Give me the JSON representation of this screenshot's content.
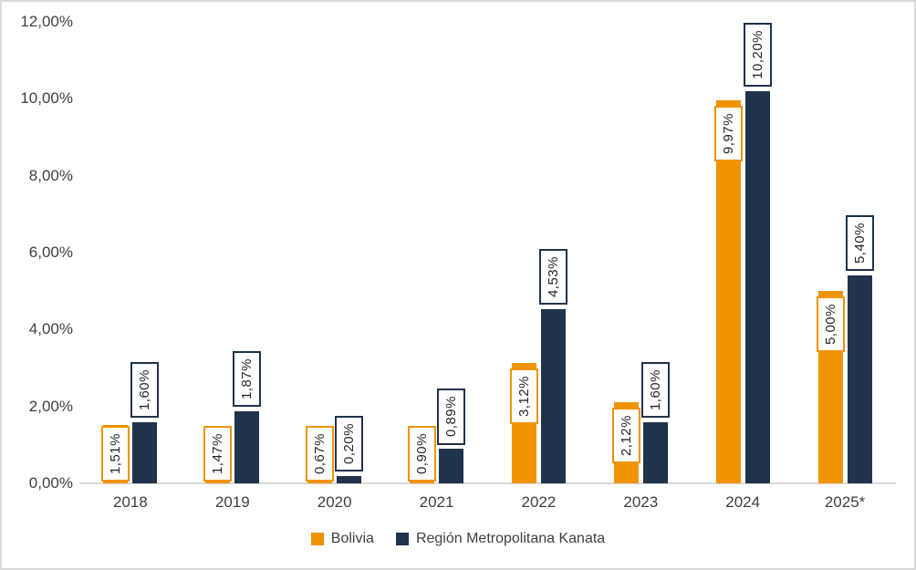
{
  "chart_data": {
    "type": "bar",
    "title": "",
    "categories": [
      "2018",
      "2019",
      "2020",
      "2021",
      "2022",
      "2023",
      "2024",
      "2025*"
    ],
    "series": [
      {
        "name": "Bolivia",
        "color": "#F09300",
        "values": [
          1.51,
          1.47,
          0.67,
          0.9,
          3.12,
          2.12,
          9.97,
          5.0
        ],
        "labels": [
          "1,51%",
          "1,47%",
          "0,67%",
          "0,90%",
          "3,12%",
          "2,12%",
          "9,97%",
          "5,00%"
        ],
        "label_position": "inside-end"
      },
      {
        "name": "Región Metropolitana Kanata",
        "color": "#1F334C",
        "values": [
          1.6,
          1.87,
          0.2,
          0.89,
          4.53,
          1.6,
          10.2,
          5.4
        ],
        "labels": [
          "1,60%",
          "1,87%",
          "0,20%",
          "0,89%",
          "4,53%",
          "1,60%",
          "10,20%",
          "5,40%"
        ],
        "label_position": "outside-end"
      }
    ],
    "y_axis": {
      "tick_labels": [
        "0,00%",
        "2,00%",
        "4,00%",
        "6,00%",
        "8,00%",
        "10,00%",
        "12,00%"
      ],
      "tick_values": [
        0,
        2,
        4,
        6,
        8,
        10,
        12
      ]
    },
    "ylim": [
      0,
      12
    ],
    "grid": false,
    "legend_position": "bottom",
    "data_label_style": "boxed-rotated-90ccw",
    "colors": {
      "axis_line": "#D9D9D9",
      "frame": "#D9D9D9",
      "tick_text": "#3F3F3F",
      "data_label_text": "#262626",
      "background": "#FFFFFF"
    }
  }
}
